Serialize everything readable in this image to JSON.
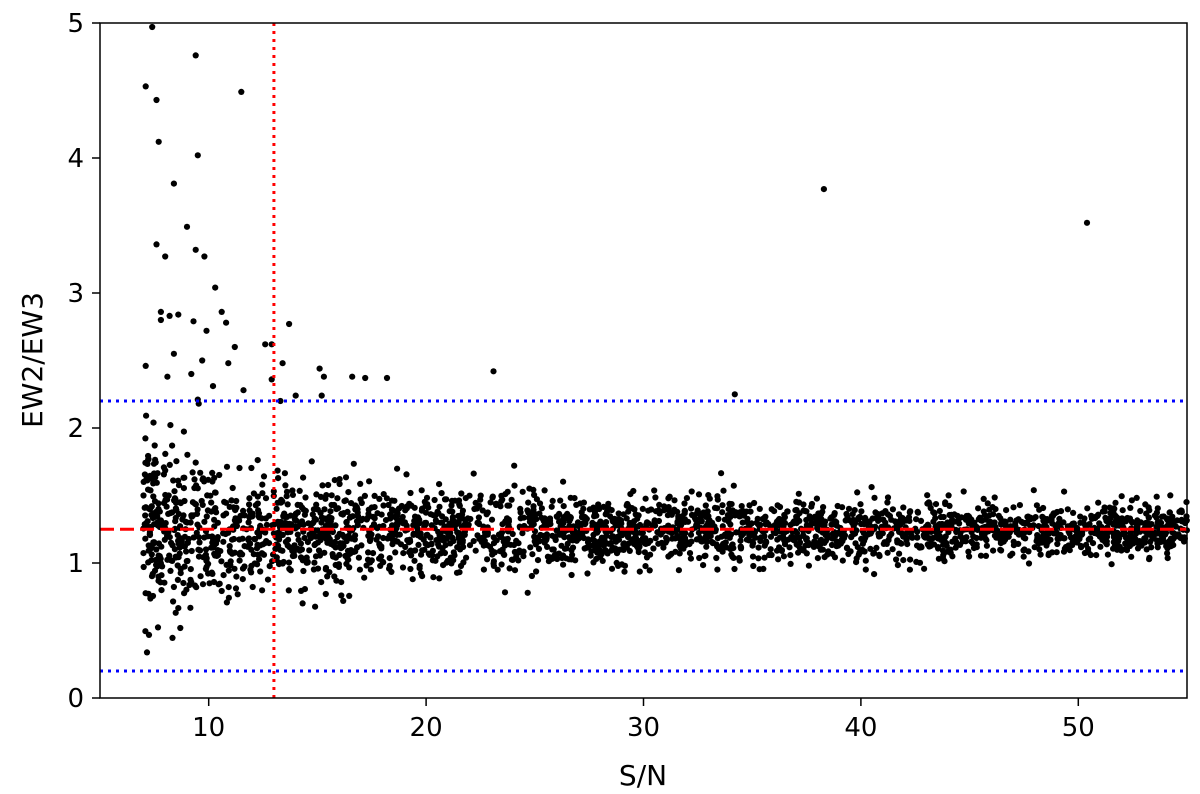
{
  "chart_data": {
    "type": "scatter",
    "title": "",
    "xlabel": "S/N",
    "ylabel": "EW2/EW3",
    "xlim": [
      5,
      55
    ],
    "ylim": [
      0,
      5
    ],
    "xticks": [
      10,
      20,
      30,
      40,
      50
    ],
    "yticks": [
      0,
      1,
      2,
      3,
      4,
      5
    ],
    "grid": false,
    "legend": "none",
    "point_color": "#000000",
    "reference_lines": [
      {
        "name": "snr-cut",
        "orientation": "vertical",
        "value": 13.0,
        "color": "#ff0000",
        "style": "dotted"
      },
      {
        "name": "median-ratio",
        "orientation": "horizontal",
        "value": 1.25,
        "color": "#ff0000",
        "style": "dashed"
      },
      {
        "name": "upper-limit",
        "orientation": "horizontal",
        "value": 2.2,
        "color": "#0000ff",
        "style": "dotted"
      },
      {
        "name": "lower-limit",
        "orientation": "horizontal",
        "value": 0.2,
        "color": "#0000ff",
        "style": "dotted"
      }
    ],
    "points": [
      [
        7.4,
        4.97
      ],
      [
        9.4,
        4.76
      ],
      [
        7.1,
        4.53
      ],
      [
        11.5,
        4.49
      ],
      [
        7.6,
        4.43
      ],
      [
        7.7,
        4.12
      ],
      [
        9.5,
        4.02
      ],
      [
        8.4,
        3.81
      ],
      [
        38.3,
        3.77
      ],
      [
        9.0,
        3.49
      ],
      [
        50.4,
        3.52
      ],
      [
        7.6,
        3.36
      ],
      [
        9.4,
        3.32
      ],
      [
        9.8,
        3.27
      ],
      [
        8.0,
        3.27
      ],
      [
        10.3,
        3.04
      ],
      [
        10.6,
        2.86
      ],
      [
        7.8,
        2.86
      ],
      [
        8.2,
        2.83
      ],
      [
        8.6,
        2.84
      ],
      [
        9.3,
        2.79
      ],
      [
        10.8,
        2.78
      ],
      [
        13.7,
        2.77
      ],
      [
        7.8,
        2.8
      ],
      [
        9.9,
        2.72
      ],
      [
        11.2,
        2.6
      ],
      [
        12.6,
        2.62
      ],
      [
        12.9,
        2.62
      ],
      [
        8.4,
        2.55
      ],
      [
        9.7,
        2.5
      ],
      [
        10.9,
        2.48
      ],
      [
        13.4,
        2.48
      ],
      [
        7.1,
        2.46
      ],
      [
        9.2,
        2.4
      ],
      [
        8.1,
        2.38
      ],
      [
        15.1,
        2.44
      ],
      [
        23.1,
        2.42
      ],
      [
        16.6,
        2.38
      ],
      [
        17.2,
        2.37
      ],
      [
        18.2,
        2.37
      ],
      [
        12.9,
        2.36
      ],
      [
        10.2,
        2.31
      ],
      [
        11.6,
        2.28
      ],
      [
        15.3,
        2.38
      ],
      [
        34.2,
        2.25
      ],
      [
        14.0,
        2.24
      ],
      [
        15.2,
        2.24
      ],
      [
        9.5,
        2.21
      ],
      [
        13.3,
        2.2
      ]
    ]
  }
}
